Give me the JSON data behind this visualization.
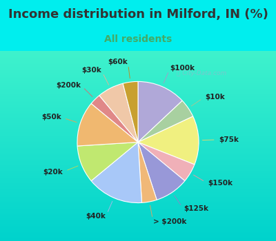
{
  "title": "Income distribution in Milford, IN (%)",
  "subtitle": "All residents",
  "title_color": "#333333",
  "subtitle_color": "#44aa66",
  "background_color": "#00eeee",
  "chart_bg_top": "#d8f0e8",
  "chart_bg_bottom": "#e8faf0",
  "watermark": "City-Data.com",
  "labels": [
    "$100k",
    "$10k",
    "$75k",
    "$150k",
    "$125k",
    "> $200k",
    "$40k",
    "$20k",
    "$50k",
    "$200k",
    "$30k",
    "$60k"
  ],
  "values": [
    13,
    5,
    13,
    5,
    9,
    4,
    15,
    10,
    12,
    3,
    7,
    4
  ],
  "colors": [
    "#b0a8d8",
    "#a8d0a0",
    "#f0f080",
    "#f0b0b8",
    "#9898d8",
    "#f0b878",
    "#a8c8f8",
    "#c0e870",
    "#f0b870",
    "#e08888",
    "#f0c8a8",
    "#c8a030"
  ],
  "label_fontsize": 7.5,
  "title_fontsize": 13,
  "subtitle_fontsize": 10,
  "line_colors": [
    "#a0a0c8",
    "#a0c898",
    "#d8d870",
    "#d8a0a8",
    "#8888c8",
    "#d8a868",
    "#a0b8e8",
    "#b0d860",
    "#d8a860",
    "#c87878",
    "#d8b898",
    "#b89028"
  ]
}
